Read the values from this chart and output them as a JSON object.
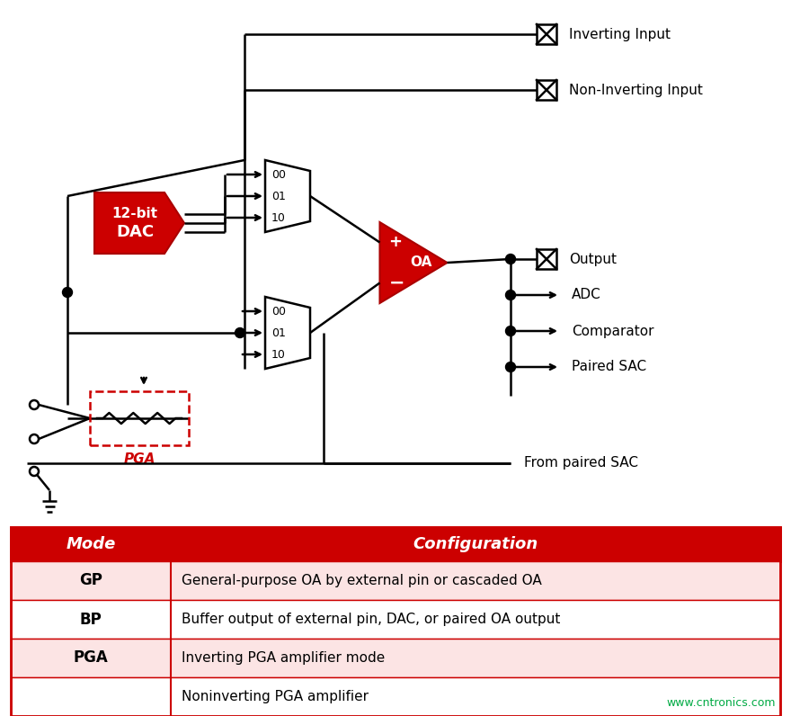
{
  "bg_color": "#ffffff",
  "red_color": "#cc0000",
  "dark_red": "#aa0000",
  "table_header_bg": "#cc0000",
  "table_border": "#cc0000",
  "row_colors": [
    "#fce4e4",
    "#ffffff",
    "#fce4e4",
    "#fce4e4",
    "#ffffff"
  ],
  "table_modes": [
    "GP",
    "BP",
    "PGA",
    ""
  ],
  "table_configs": [
    "General-purpose OA by external pin or cascaded OA",
    "Buffer output of external pin, DAC, or paired OA output",
    "Inverting PGA amplifier mode",
    "Noninverting PGA amplifier"
  ],
  "label_inverting": "Inverting Input",
  "label_noninverting": "Non-Inverting Input",
  "label_output": "Output",
  "label_adc": "ADC",
  "label_comparator": "Comparator",
  "label_paired_sac": "Paired SAC",
  "label_from_paired": "From paired SAC",
  "label_pga": "PGA",
  "watermark": "www.cntronics.com",
  "watermark_color": "#00aa44",
  "lw": 1.8
}
